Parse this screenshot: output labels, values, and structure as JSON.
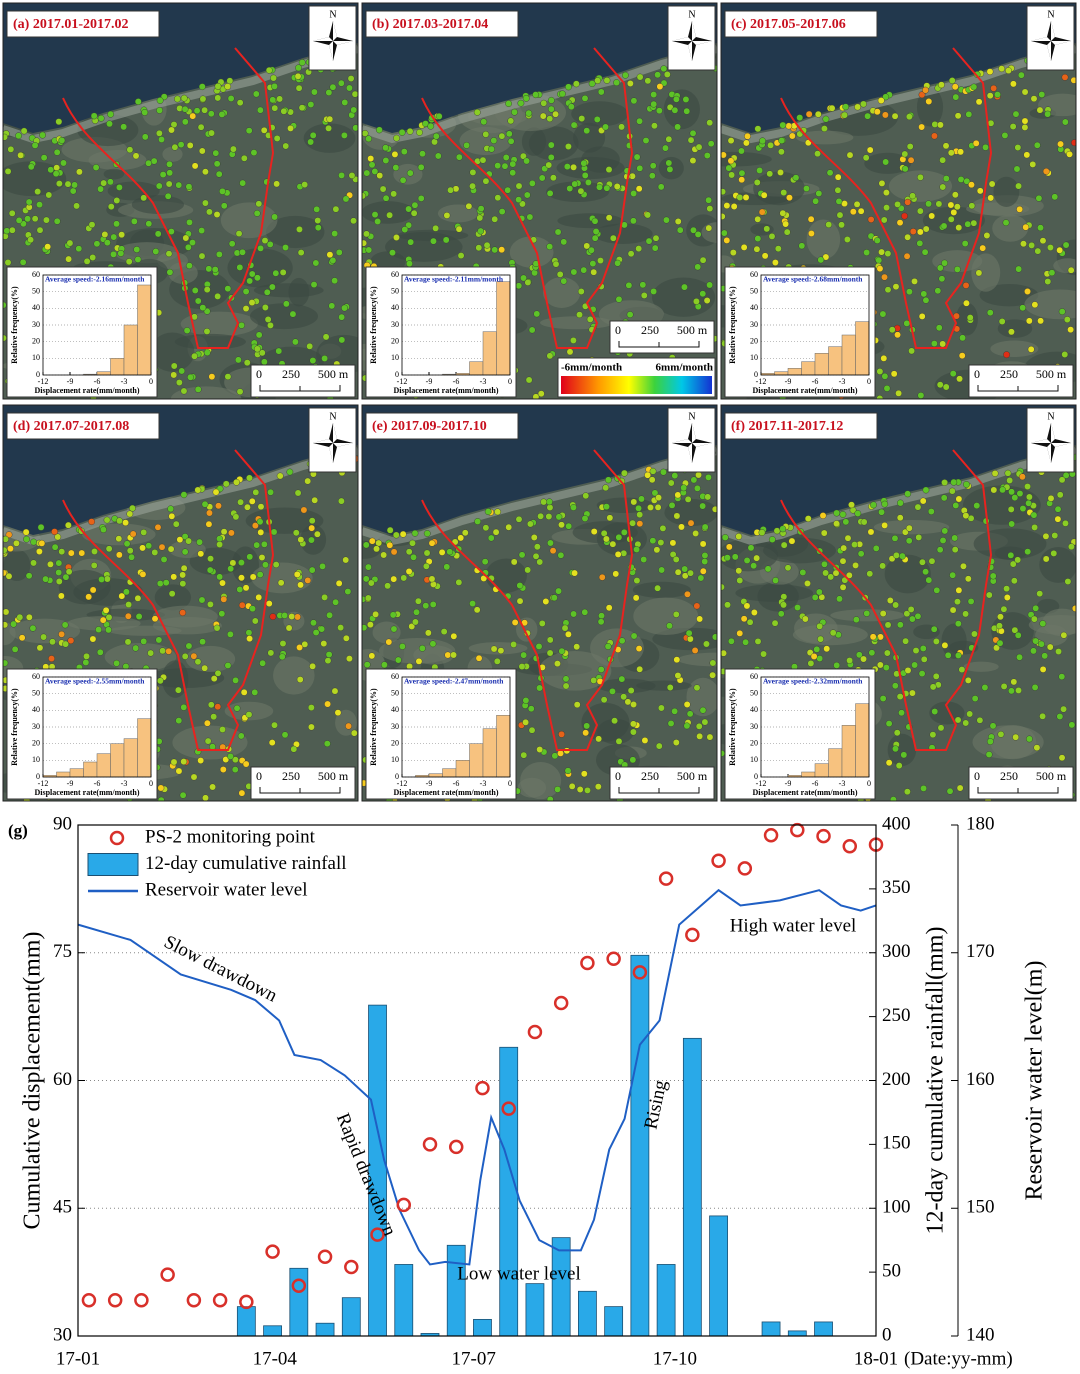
{
  "map_common": {
    "north": "N",
    "scale_labels": [
      "0",
      "250",
      "500 m"
    ],
    "hist_xlabel": "Displacement rate(mm/month)",
    "hist_ylabel": "Relative frequency(%)",
    "hist_bins": [
      -12,
      -10.5,
      -9,
      -7.5,
      -6,
      -4.5,
      -3,
      -1.5,
      0
    ],
    "hist_xlim": [
      -12,
      0
    ],
    "hist_xticks": [
      -12,
      -9,
      -6,
      -3,
      0
    ],
    "hist_ylim": [
      0,
      60
    ],
    "hist_yticks": [
      0,
      10,
      20,
      30,
      40,
      50,
      60
    ],
    "hist_color": "#f7c27f"
  },
  "panels": [
    {
      "label": "(a) 2017.01-2017.02",
      "average_speed": "Average speed:-2.16mm/month",
      "histogram": {
        "type": "histogram",
        "values": [
          0,
          0,
          0,
          0.5,
          2,
          10,
          30,
          54
        ]
      }
    },
    {
      "label": "(b) 2017.03-2017.04",
      "average_speed": "Average speed:-2.11mm/month",
      "histogram": {
        "type": "histogram",
        "values": [
          0,
          0,
          0,
          0.5,
          1,
          8,
          26,
          56
        ]
      },
      "colorbar": {
        "min_label": "-6mm/month",
        "max_label": "6mm/month"
      }
    },
    {
      "label": "(c) 2017.05-2017.06",
      "average_speed": "Average speed:-2.68mm/month",
      "histogram": {
        "type": "histogram",
        "values": [
          1,
          2,
          4,
          8,
          13,
          17,
          24,
          32
        ]
      }
    },
    {
      "label": "(d) 2017.07-2017.08",
      "average_speed": "Average speed:-2.55mm/month",
      "histogram": {
        "type": "histogram",
        "values": [
          1,
          3,
          5,
          9,
          14,
          20,
          23,
          35
        ]
      }
    },
    {
      "label": "(e) 2017.09-2017.10",
      "average_speed": "Average speed:-2.47mm/month",
      "histogram": {
        "type": "histogram",
        "values": [
          0,
          1,
          2,
          5,
          10,
          20,
          29,
          37
        ]
      }
    },
    {
      "label": "(f) 2017.11-2017.12",
      "average_speed": "Average speed:-2.32mm/month",
      "histogram": {
        "type": "histogram",
        "values": [
          0,
          0,
          1,
          3,
          8,
          17,
          31,
          44
        ]
      }
    }
  ],
  "chart_data": {
    "type": "combo",
    "panel_label": "(g)",
    "ylabel": "Cumulative displacement(mm)",
    "y2label": "12-day cumulative rainfall(mm)",
    "y3label": "Reservoir water level(m)",
    "xlabel": "(Date:yy-mm)",
    "xlim": [
      0,
      365
    ],
    "xticks": [
      {
        "value": 0,
        "label": "17-01"
      },
      {
        "value": 90,
        "label": "17-04"
      },
      {
        "value": 181,
        "label": "17-07"
      },
      {
        "value": 273,
        "label": "17-10"
      },
      {
        "value": 365,
        "label": "18-01"
      }
    ],
    "ylim": [
      30,
      90
    ],
    "yticks": [
      30,
      45,
      60,
      75,
      90
    ],
    "y2lim": [
      0,
      400
    ],
    "y2ticks": [
      0,
      50,
      100,
      150,
      200,
      250,
      300,
      350,
      400
    ],
    "y3lim": [
      140,
      180
    ],
    "y3ticks": [
      140,
      150,
      160,
      170,
      180
    ],
    "grid": true,
    "annotations": [
      "Slow drawdown",
      "Rapid drawdown",
      "Low water level",
      "Rising",
      "High water level"
    ],
    "series": [
      {
        "name": "PS-2 monitoring point",
        "type": "scatter",
        "color": "#d8302a",
        "x": [
          5,
          17,
          29,
          41,
          53,
          65,
          77,
          89,
          101,
          113,
          125,
          137,
          149,
          161,
          173,
          185,
          197,
          209,
          221,
          233,
          245,
          257,
          269,
          281,
          293,
          305,
          317,
          329,
          341,
          353,
          365
        ],
        "values": [
          34.2,
          34.2,
          34.2,
          37.2,
          34.2,
          34.2,
          34.0,
          39.9,
          35.9,
          39.3,
          38.1,
          41.9,
          45.4,
          52.5,
          52.2,
          59.1,
          56.7,
          65.7,
          69.1,
          73.8,
          74.3,
          72.7,
          83.7,
          77.1,
          85.8,
          84.9,
          88.8,
          89.4,
          88.7,
          87.5,
          87.7
        ]
      },
      {
        "name": "12-day cumulative rainfall",
        "type": "bar",
        "axis": "y2",
        "color": "#29a9e8",
        "x": [
          5,
          17,
          29,
          41,
          53,
          65,
          77,
          89,
          101,
          113,
          125,
          137,
          149,
          161,
          173,
          185,
          197,
          209,
          221,
          233,
          245,
          257,
          269,
          281,
          293,
          305,
          317,
          329,
          341,
          353,
          365
        ],
        "values": [
          0,
          0,
          0,
          0,
          0,
          0,
          23,
          8,
          53,
          10,
          30,
          259,
          56,
          2,
          71,
          13,
          226,
          41,
          77,
          35,
          23,
          298,
          56,
          233,
          94,
          0,
          11,
          4,
          11,
          0,
          0
        ]
      },
      {
        "name": "Reservoir water level",
        "type": "line",
        "axis": "y3",
        "color": "#1f5fc4",
        "x": [
          0,
          24,
          47,
          70,
          81,
          92,
          99,
          111,
          122,
          134,
          140,
          147,
          156,
          161,
          168,
          179,
          184,
          189,
          195,
          202,
          211,
          220,
          230,
          236,
          243,
          250,
          257,
          266,
          275,
          285,
          293,
          303,
          321,
          339,
          349,
          358,
          365
        ],
        "values": [
          172.2,
          171.0,
          168.3,
          167.1,
          166.3,
          164.7,
          162.0,
          161.6,
          160.4,
          158.5,
          153.8,
          149.9,
          146.7,
          145.6,
          145.8,
          145.6,
          152.2,
          157.1,
          154.6,
          150.6,
          147.5,
          146.7,
          146.7,
          149.1,
          154.6,
          157.0,
          162.8,
          164.7,
          172.2,
          173.7,
          174.9,
          173.7,
          174.1,
          174.9,
          173.7,
          173.3,
          173.7
        ]
      }
    ]
  }
}
